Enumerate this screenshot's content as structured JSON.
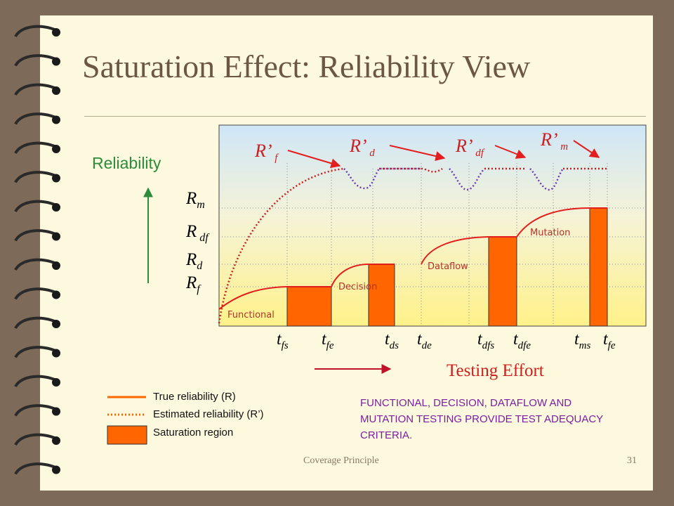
{
  "slide": {
    "title": "Saturation Effect: Reliability View",
    "footer_left": "Coverage Principle",
    "page_number": "31"
  },
  "diagram": {
    "y_axis_label": "Reliability",
    "x_axis_label": "Testing Effort",
    "levels": [
      {
        "base": "R",
        "sub": "m"
      },
      {
        "base": "R",
        "sub": " df"
      },
      {
        "base": "R",
        "sub": "d"
      },
      {
        "base": "R",
        "sub": "f"
      }
    ],
    "estimates": [
      {
        "base": "R’",
        "sub": " f"
      },
      {
        "base": "R’",
        "sub": " d"
      },
      {
        "base": "R’",
        "sub": " df"
      },
      {
        "base": "R’",
        "sub": " m"
      }
    ],
    "stages": [
      "Functional",
      "Decision",
      "Dataflow",
      "Mutation"
    ],
    "time_marks": [
      {
        "t": "t",
        "sub": "fs"
      },
      {
        "t": "t",
        "sub": "fe"
      },
      {
        "t": "t",
        "sub": "ds"
      },
      {
        "t": "t",
        "sub": "de"
      },
      {
        "t": "t",
        "sub": "dfs"
      },
      {
        "t": "t",
        "sub": "dfe"
      },
      {
        "t": "t",
        "sub": "ms"
      },
      {
        "t": "t",
        "sub": "fe"
      }
    ]
  },
  "legend": {
    "true_reliability": "True reliability (R)",
    "estimated_reliability": "Estimated reliability (R’)",
    "saturation_region": "Saturation region"
  },
  "note": "FUNCTIONAL, DECISION, DATAFLOW AND MUTATION TESTING PROVIDE TEST ADEQUACY CRITERIA.",
  "colors": {
    "true_curve": "#e31e1e",
    "estimated_curve": "#cc1f1f",
    "saturation_fill": "#ff6600",
    "axis_arrow": "#2e8b3a",
    "title": "#6b5744"
  }
}
